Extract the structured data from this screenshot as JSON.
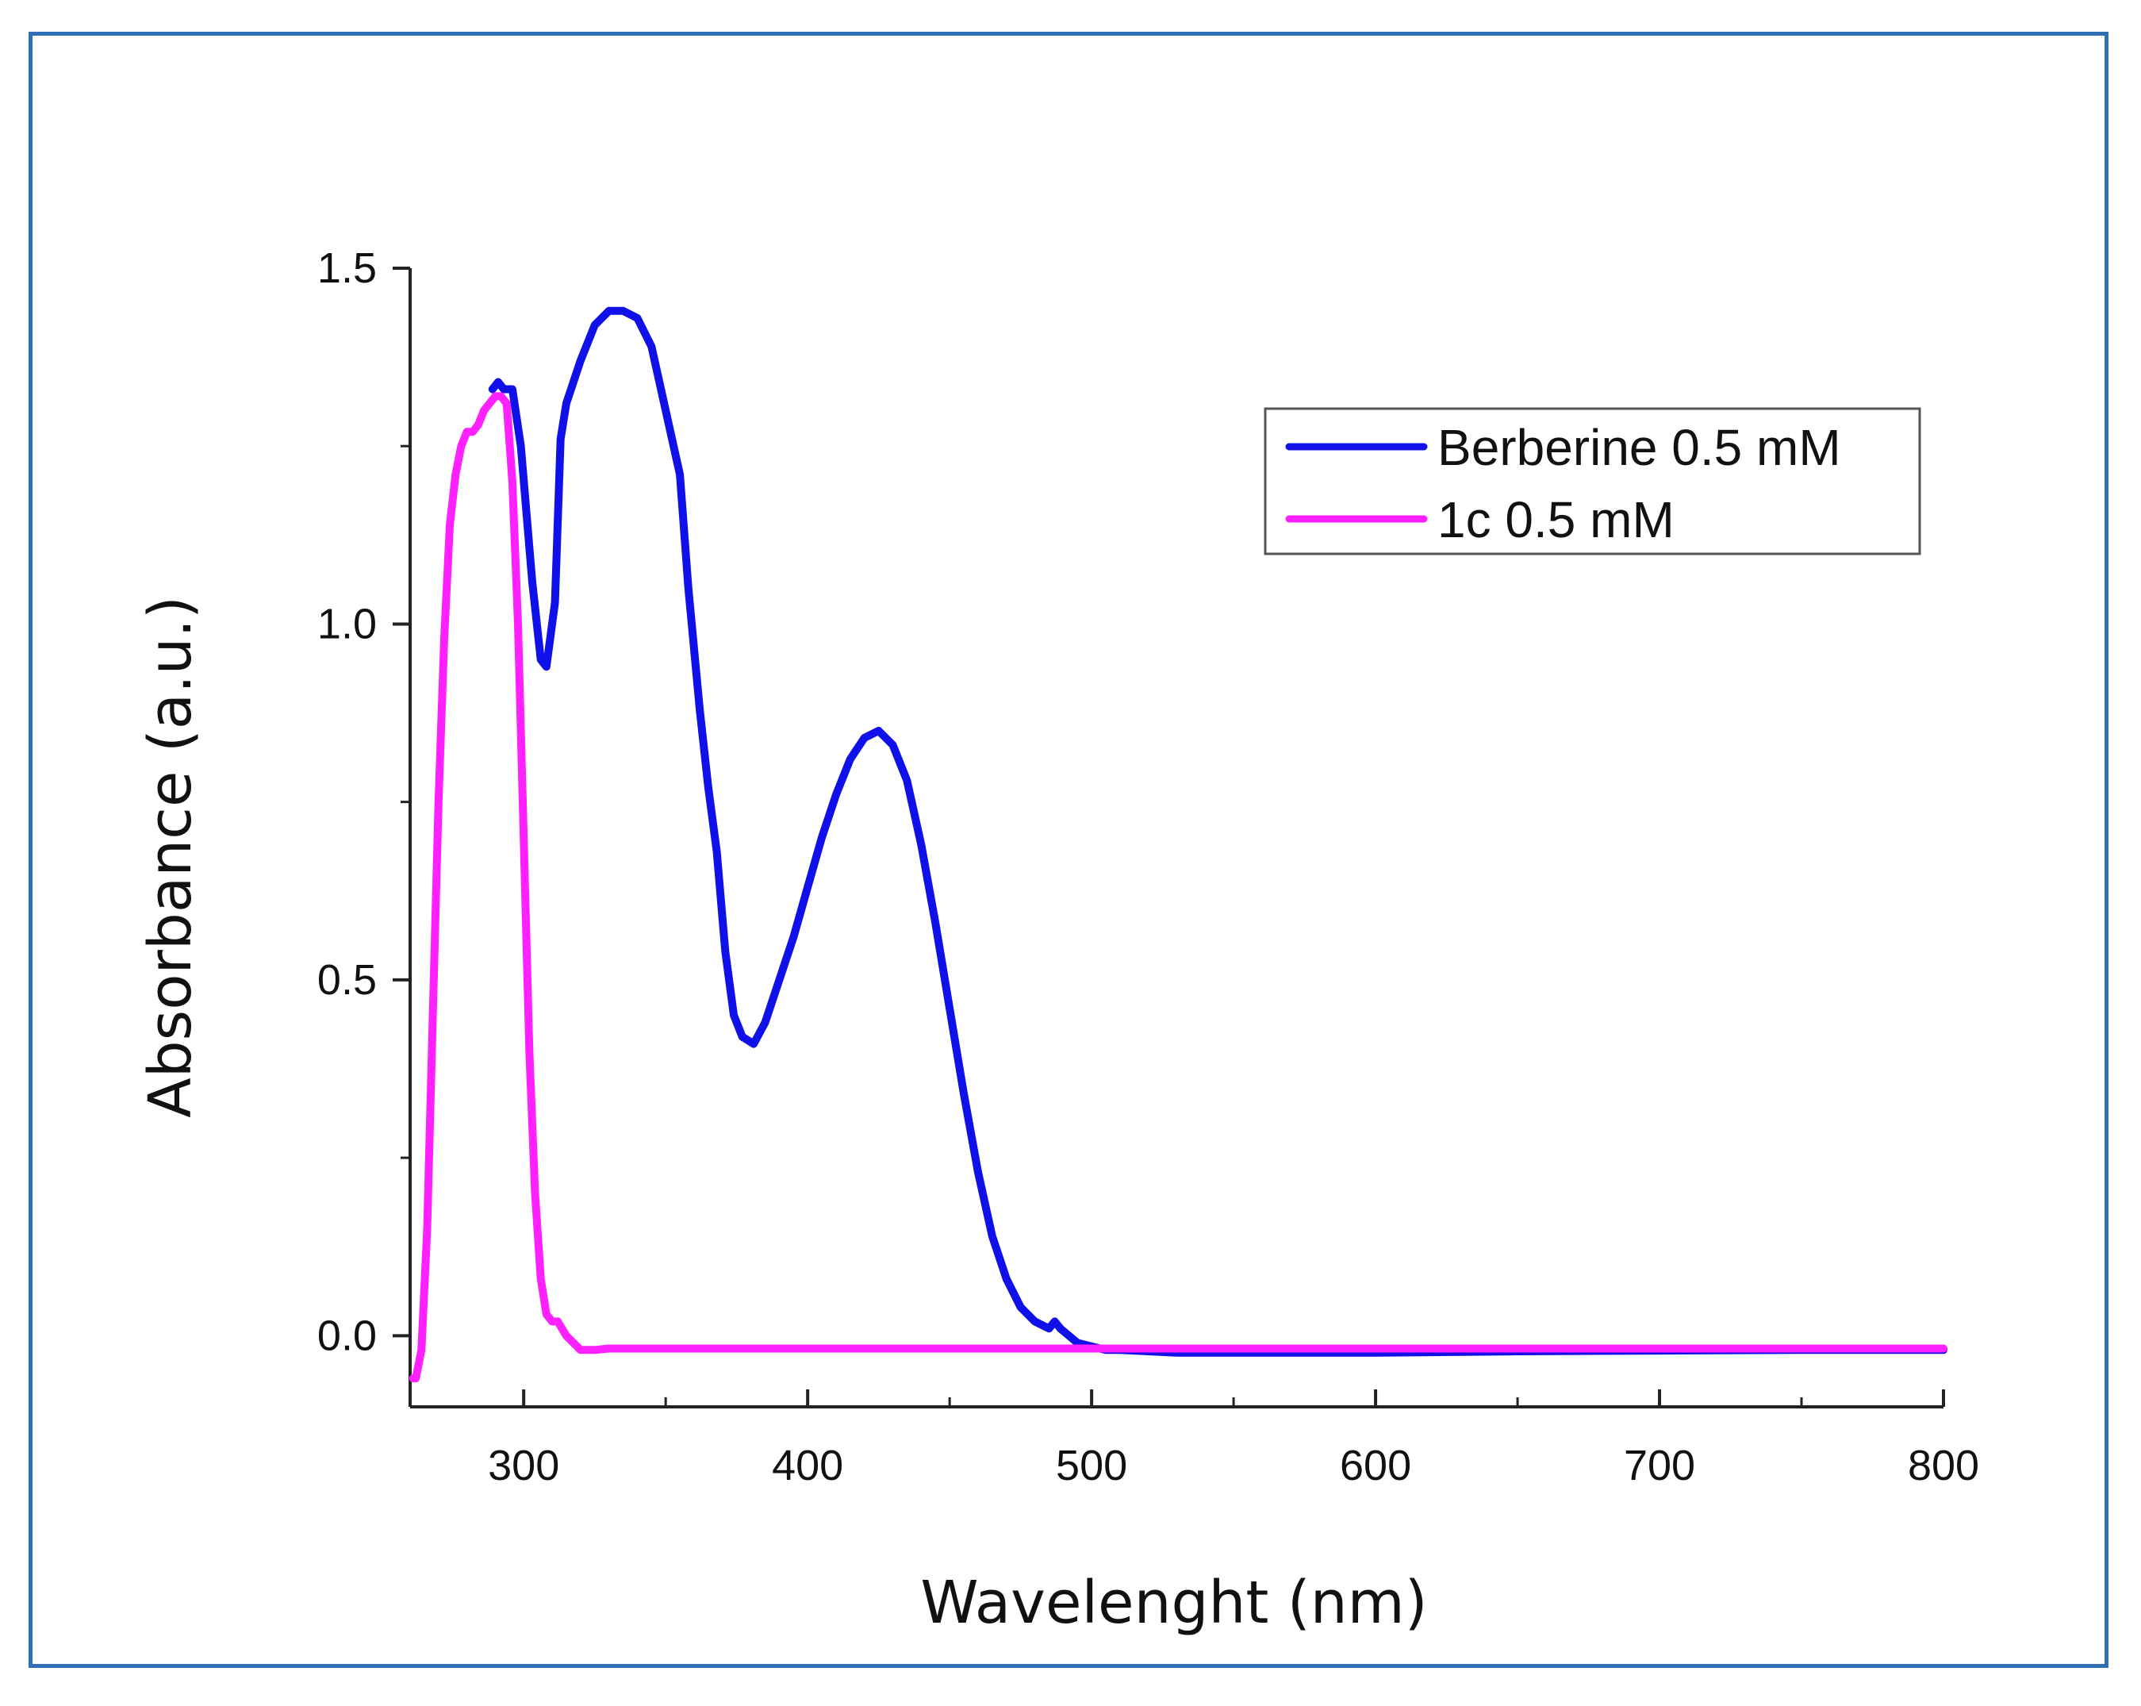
{
  "chart_data": {
    "type": "line",
    "title": "",
    "xlabel": "Wavelenght (nm)",
    "ylabel": "Absorbance (a.u.)",
    "xlim": [
      260,
      800
    ],
    "ylim": [
      -0.1,
      1.5
    ],
    "x_ticks": [
      300,
      400,
      500,
      600,
      700,
      800
    ],
    "x_tick_labels": [
      "300",
      "400",
      "500",
      "600",
      "700",
      "800"
    ],
    "x_minor_ticks": [
      350,
      450,
      550,
      650,
      750
    ],
    "y_ticks": [
      0.0,
      0.5,
      1.0,
      1.5
    ],
    "y_tick_labels": [
      "0.0",
      "0.5",
      "1.0",
      "1.5"
    ],
    "y_minor_ticks": [
      0.25,
      0.75,
      1.25
    ],
    "grid": false,
    "legend_position": "top-right",
    "series": [
      {
        "name": "Berberine 0.5 mM",
        "color": "#1010E8",
        "x": [
          289,
          291,
          293,
          296,
          299,
          303,
          306,
          308,
          311,
          313,
          315,
          320,
          325,
          330,
          335,
          340,
          345,
          350,
          355,
          358,
          362,
          365,
          368,
          371,
          374,
          377,
          381,
          385,
          390,
          395,
          400,
          405,
          410,
          415,
          420,
          425,
          430,
          435,
          440,
          445,
          450,
          455,
          460,
          465,
          470,
          475,
          480,
          485,
          487,
          489,
          492,
          495,
          500,
          505,
          510,
          520,
          530,
          540,
          560,
          600,
          650,
          700,
          750,
          800
        ],
        "y": [
          1.33,
          1.34,
          1.33,
          1.33,
          1.25,
          1.06,
          0.95,
          0.94,
          1.03,
          1.26,
          1.31,
          1.37,
          1.42,
          1.44,
          1.44,
          1.43,
          1.39,
          1.3,
          1.21,
          1.05,
          0.88,
          0.77,
          0.68,
          0.54,
          0.45,
          0.42,
          0.41,
          0.44,
          0.5,
          0.56,
          0.63,
          0.7,
          0.76,
          0.81,
          0.84,
          0.85,
          0.83,
          0.78,
          0.69,
          0.58,
          0.46,
          0.34,
          0.23,
          0.14,
          0.08,
          0.04,
          0.02,
          0.01,
          0.02,
          0.01,
          0.0,
          -0.01,
          -0.015,
          -0.02,
          -0.02,
          -0.022,
          -0.024,
          -0.024,
          -0.024,
          -0.024,
          -0.022,
          -0.021,
          -0.02,
          -0.02
        ]
      },
      {
        "name": "1c 0.5 mM",
        "color": "#FF20FF",
        "x": [
          261,
          262,
          264,
          266,
          268,
          270,
          272,
          274,
          276,
          278,
          280,
          282,
          284,
          286,
          288,
          290,
          292,
          294,
          296,
          298,
          300,
          302,
          304,
          306,
          308,
          310,
          312,
          315,
          320,
          325,
          330,
          350,
          400,
          450,
          500,
          550,
          600,
          650,
          700,
          750,
          800
        ],
        "y": [
          -0.06,
          -0.06,
          -0.02,
          0.15,
          0.45,
          0.75,
          0.98,
          1.14,
          1.21,
          1.25,
          1.27,
          1.27,
          1.28,
          1.3,
          1.31,
          1.32,
          1.32,
          1.31,
          1.2,
          1.0,
          0.7,
          0.4,
          0.2,
          0.08,
          0.03,
          0.02,
          0.02,
          0.0,
          -0.02,
          -0.02,
          -0.018,
          -0.018,
          -0.018,
          -0.018,
          -0.018,
          -0.018,
          -0.018,
          -0.018,
          -0.018,
          -0.018,
          -0.018
        ]
      }
    ]
  }
}
